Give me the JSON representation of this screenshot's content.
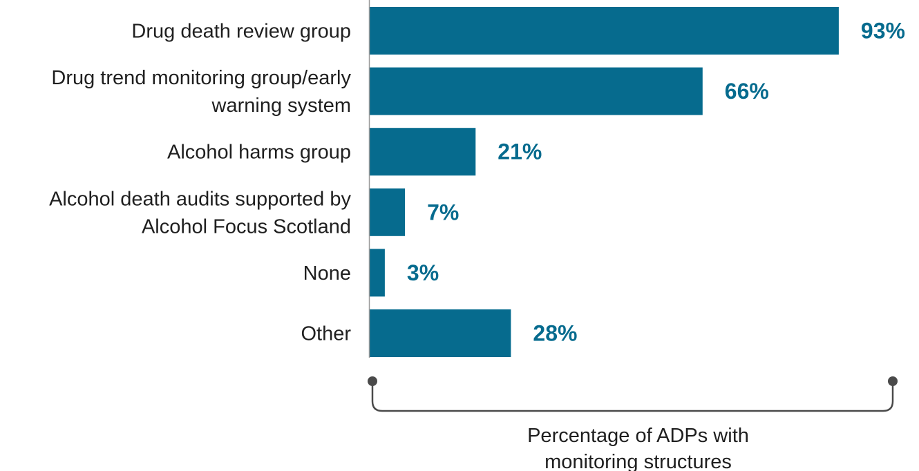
{
  "chart_data": {
    "type": "bar",
    "orientation": "horizontal",
    "categories": [
      [
        "Drug death review group"
      ],
      [
        "Drug trend monitoring group/early",
        "warning system"
      ],
      [
        "Alcohol harms group"
      ],
      [
        "Alcohol death audits supported by",
        "Alcohol Focus Scotland"
      ],
      [
        "None"
      ],
      [
        "Other"
      ]
    ],
    "values": [
      93,
      66,
      21,
      7,
      3,
      28
    ],
    "value_labels": [
      "93%",
      "66%",
      "21%",
      "7%",
      "3%",
      "28%"
    ],
    "xlim": [
      0,
      100
    ],
    "xlabel": [
      "Percentage of ADPs with",
      "monitoring structures"
    ],
    "grid": false,
    "legend": "none",
    "colors": {
      "bar": "#066b8e",
      "value_label": "#066b8e",
      "axis": "#9a9a9a",
      "bracket": "#4a4a4a"
    }
  }
}
